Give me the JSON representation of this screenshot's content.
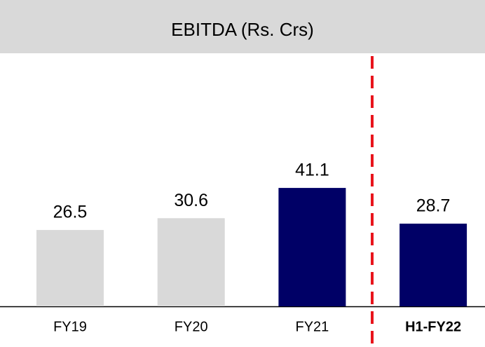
{
  "chart_data": {
    "type": "bar",
    "title": "EBITDA (Rs. Crs)",
    "categories": [
      "FY19",
      "FY20",
      "FY21",
      "H1-FY22"
    ],
    "values": [
      26.5,
      30.6,
      41.1,
      28.7
    ],
    "colors": [
      "#d9d9d9",
      "#d9d9d9",
      "#000066",
      "#000066"
    ]
  }
}
